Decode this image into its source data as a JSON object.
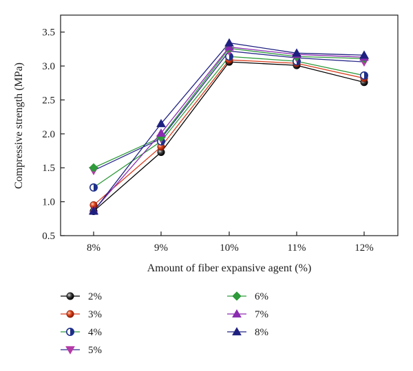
{
  "chart_data": {
    "type": "line",
    "xlabel": "Amount of fiber expansive agent (%)",
    "ylabel": "Compressive strength (MPa)",
    "categories": [
      "8%",
      "9%",
      "10%",
      "11%",
      "12%"
    ],
    "ylim": [
      0.5,
      3.75
    ],
    "yticks": [
      0.5,
      1.0,
      1.5,
      2.0,
      2.5,
      3.0,
      3.5
    ],
    "ytick_labels": [
      "0.5",
      "1.0",
      "1.5",
      "2.0",
      "2.5",
      "3.0",
      "3.5"
    ],
    "grid": false,
    "legend_position": "bottom",
    "series": [
      {
        "name": "2%",
        "values": [
          0.86,
          1.73,
          3.06,
          3.01,
          2.76
        ],
        "color": "#000000",
        "marker": "sphere",
        "marker_color": "#111111",
        "line_color": "#000000"
      },
      {
        "name": "3%",
        "values": [
          0.95,
          1.81,
          3.09,
          3.04,
          2.82
        ],
        "color": "#d93a1a",
        "marker": "sphere",
        "marker_color": "#d93a1a",
        "line_color": "#d93a1a"
      },
      {
        "name": "4%",
        "values": [
          1.21,
          1.89,
          3.14,
          3.07,
          2.86
        ],
        "color": "#1e2f8a",
        "marker": "half-circle",
        "marker_color": "#1e2f8a",
        "line_color": "#2e9a3a"
      },
      {
        "name": "5%",
        "values": [
          1.46,
          1.93,
          3.22,
          3.12,
          3.06
        ],
        "color": "#b43aa8",
        "marker": "triangle-down",
        "marker_color": "#b43aa8",
        "line_color": "#2a2a8c"
      },
      {
        "name": "6%",
        "values": [
          1.5,
          1.95,
          3.26,
          3.14,
          3.11
        ],
        "color": "#2e9a3a",
        "marker": "diamond",
        "marker_color": "#2e9a3a",
        "line_color": "#2e9a3a"
      },
      {
        "name": "7%",
        "values": [
          0.87,
          2.01,
          3.28,
          3.17,
          3.13
        ],
        "color": "#8a2bb0",
        "marker": "triangle-up",
        "marker_color": "#8a2bb0",
        "line_color": "#8a2bb0"
      },
      {
        "name": "8%",
        "values": [
          0.86,
          2.15,
          3.34,
          3.19,
          3.16
        ],
        "color": "#1e2080",
        "marker": "triangle-up",
        "marker_color": "#1e2080",
        "line_color": "#1e2080"
      }
    ]
  }
}
